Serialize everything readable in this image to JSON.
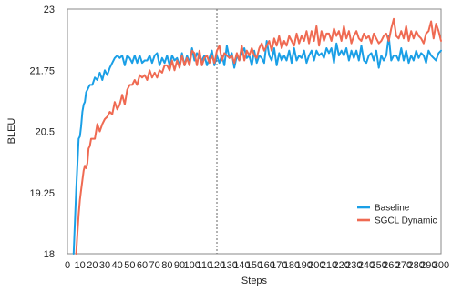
{
  "chart_data": {
    "type": "line",
    "xlabel": "Steps",
    "ylabel": "BLEU",
    "xlim": [
      0,
      300
    ],
    "ylim": [
      18,
      23
    ],
    "xticks": [
      0,
      10,
      20,
      30,
      40,
      50,
      60,
      70,
      80,
      90,
      100,
      110,
      120,
      130,
      140,
      150,
      160,
      170,
      180,
      190,
      200,
      210,
      220,
      230,
      240,
      250,
      260,
      270,
      280,
      290,
      300
    ],
    "yticks": [
      18,
      19.25,
      20.5,
      21.75,
      23
    ],
    "ytick_labels": [
      "18",
      "19.25",
      "20.5",
      "21.75",
      "23"
    ],
    "vline_x": 120,
    "grid": false,
    "legend_position": "lower-right",
    "series": [
      {
        "name": "Baseline",
        "color": "#1a9fe6",
        "x": [
          5,
          7,
          9,
          10,
          11,
          12,
          13,
          14,
          15,
          16,
          17,
          18,
          19,
          20,
          22,
          24,
          26,
          28,
          30,
          32,
          34,
          36,
          38,
          40,
          42,
          44,
          46,
          48,
          50,
          52,
          54,
          56,
          58,
          60,
          62,
          64,
          66,
          68,
          70,
          72,
          74,
          76,
          78,
          80,
          82,
          84,
          86,
          88,
          90,
          92,
          94,
          96,
          98,
          100,
          102,
          104,
          106,
          108,
          110,
          112,
          114,
          116,
          118,
          120,
          122,
          124,
          126,
          128,
          130,
          132,
          134,
          136,
          138,
          140,
          142,
          144,
          146,
          148,
          150,
          152,
          154,
          156,
          158,
          160,
          162,
          164,
          166,
          168,
          170,
          172,
          174,
          176,
          178,
          180,
          182,
          184,
          186,
          188,
          190,
          192,
          194,
          196,
          198,
          200,
          202,
          204,
          206,
          208,
          210,
          212,
          214,
          216,
          218,
          220,
          222,
          224,
          226,
          228,
          230,
          232,
          234,
          236,
          238,
          240,
          242,
          244,
          246,
          248,
          250,
          252,
          254,
          256,
          258,
          260,
          262,
          264,
          266,
          268,
          270,
          272,
          274,
          276,
          278,
          280,
          282,
          284,
          286,
          288,
          290,
          292,
          294,
          296,
          298,
          300
        ],
        "values": [
          18.0,
          19.3,
          20.35,
          20.4,
          20.6,
          20.9,
          21.05,
          21.1,
          21.3,
          21.35,
          21.4,
          21.45,
          21.45,
          21.45,
          21.6,
          21.55,
          21.7,
          21.55,
          21.75,
          21.65,
          21.8,
          21.9,
          22.0,
          22.05,
          22.0,
          22.05,
          21.85,
          22.05,
          22.0,
          21.9,
          22.05,
          21.9,
          22.05,
          21.9,
          21.95,
          21.95,
          22.05,
          21.9,
          22.05,
          22.1,
          21.85,
          22.0,
          21.9,
          22.05,
          21.85,
          22.05,
          21.95,
          22.0,
          21.85,
          22.1,
          21.85,
          22.05,
          21.9,
          22.2,
          21.95,
          22.1,
          22.0,
          21.95,
          22.05,
          21.85,
          22.0,
          22.15,
          21.85,
          22.05,
          21.9,
          22.05,
          21.85,
          22.25,
          22.0,
          22.1,
          21.8,
          22.05,
          21.95,
          22.1,
          22.2,
          22.0,
          22.05,
          21.85,
          22.15,
          21.9,
          22.05,
          22.0,
          21.9,
          22.35,
          22.05,
          21.95,
          22.2,
          21.85,
          22.1,
          21.95,
          22.05,
          21.95,
          22.15,
          21.9,
          22.2,
          21.95,
          22.05,
          22.0,
          22.15,
          21.9,
          22.05,
          22.15,
          21.95,
          22.15,
          22.05,
          22.1,
          22.0,
          22.2,
          22.1,
          22.2,
          21.9,
          22.3,
          22.05,
          22.15,
          22.05,
          22.2,
          21.95,
          22.15,
          22.0,
          22.15,
          21.95,
          22.25,
          21.95,
          21.9,
          22.05,
          22.1,
          21.95,
          22.15,
          21.8,
          22.05,
          21.95,
          22.05,
          22.45,
          21.95,
          22.05,
          22.05,
          21.95,
          22.2,
          21.95,
          22.15,
          21.9,
          22.05,
          21.95,
          22.15,
          22.0,
          22.1,
          22.05,
          21.9,
          22.15,
          22.05,
          22.0,
          21.95,
          22.1,
          22.15
        ]
      },
      {
        "name": "SGCL Dynamic",
        "color": "#ef6a52",
        "x": [
          7,
          8,
          9,
          10,
          11,
          12,
          13,
          14,
          15,
          16,
          17,
          18,
          19,
          20,
          22,
          24,
          26,
          28,
          30,
          32,
          34,
          36,
          38,
          40,
          42,
          44,
          46,
          48,
          50,
          52,
          54,
          56,
          58,
          60,
          62,
          64,
          66,
          68,
          70,
          72,
          74,
          76,
          78,
          80,
          82,
          84,
          86,
          88,
          90,
          92,
          94,
          96,
          98,
          100,
          102,
          104,
          106,
          108,
          110,
          112,
          114,
          116,
          118,
          120,
          122,
          124,
          126,
          128,
          130,
          132,
          134,
          136,
          138,
          140,
          142,
          144,
          146,
          148,
          150,
          152,
          154,
          156,
          158,
          160,
          162,
          164,
          166,
          168,
          170,
          172,
          174,
          176,
          178,
          180,
          182,
          184,
          186,
          188,
          190,
          192,
          194,
          196,
          198,
          200,
          202,
          204,
          206,
          208,
          210,
          212,
          214,
          216,
          218,
          220,
          222,
          224,
          226,
          228,
          230,
          232,
          234,
          236,
          238,
          240,
          242,
          244,
          246,
          248,
          250,
          252,
          254,
          256,
          258,
          260,
          262,
          264,
          266,
          268,
          270,
          272,
          274,
          276,
          278,
          280,
          282,
          284,
          286,
          288,
          290,
          292,
          294,
          296,
          298,
          300
        ],
        "values": [
          18.0,
          18.4,
          18.8,
          19.1,
          19.3,
          19.5,
          19.7,
          19.8,
          19.75,
          19.85,
          20.15,
          20.2,
          20.35,
          20.35,
          20.35,
          20.65,
          20.5,
          20.65,
          20.75,
          20.8,
          20.9,
          20.85,
          21.1,
          20.95,
          21.05,
          21.25,
          21.05,
          21.35,
          21.45,
          21.45,
          21.55,
          21.45,
          21.65,
          21.6,
          21.65,
          21.55,
          21.75,
          21.6,
          21.7,
          21.6,
          21.75,
          21.7,
          21.85,
          21.85,
          21.75,
          21.95,
          21.75,
          21.95,
          21.8,
          22.05,
          21.85,
          22.0,
          21.85,
          22.15,
          22.1,
          21.85,
          22.15,
          21.85,
          22.0,
          22.05,
          21.9,
          22.05,
          21.9,
          22.15,
          22.25,
          21.95,
          22.1,
          22.05,
          22.0,
          22.05,
          21.9,
          22.1,
          21.95,
          22.25,
          21.95,
          22.15,
          22.05,
          22.2,
          22.05,
          22.0,
          22.2,
          22.3,
          22.15,
          22.25,
          22.35,
          22.15,
          22.4,
          22.25,
          22.45,
          22.2,
          22.35,
          22.25,
          22.45,
          22.35,
          22.25,
          22.5,
          22.3,
          22.45,
          22.35,
          22.55,
          22.3,
          22.55,
          22.35,
          22.65,
          22.25,
          22.55,
          22.35,
          22.5,
          22.5,
          22.35,
          22.6,
          22.45,
          22.55,
          22.35,
          22.65,
          22.4,
          22.55,
          22.3,
          22.45,
          22.55,
          22.4,
          22.35,
          22.5,
          22.4,
          22.45,
          22.3,
          22.5,
          22.4,
          22.3,
          22.35,
          22.45,
          22.5,
          22.35,
          22.6,
          22.8,
          22.45,
          22.4,
          22.55,
          22.4,
          22.65,
          22.35,
          22.55,
          22.4,
          22.55,
          22.45,
          22.4,
          22.3,
          22.5,
          22.55,
          22.75,
          22.4,
          22.7,
          22.55,
          22.35
        ]
      }
    ]
  }
}
